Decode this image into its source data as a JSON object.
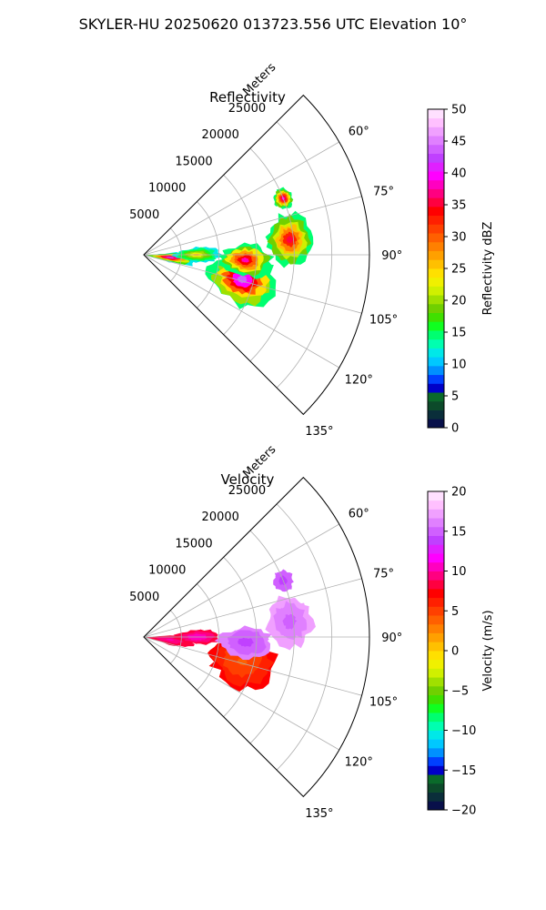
{
  "figure": {
    "title": "SKYLER-HU  20250620  013723.556 UTC Elevation 10°"
  },
  "chart_data": [
    {
      "type": "heatmap",
      "projection": "polar-sector",
      "title": "Reflectivity",
      "radial_label": "Meters",
      "theta_range_deg": [
        45,
        135
      ],
      "r_range": [
        0,
        30000
      ],
      "r_ticks": [
        "5000",
        "10000",
        "15000",
        "20000",
        "25000"
      ],
      "theta_ticks": [
        "60°",
        "75°",
        "90°",
        "105°",
        "120°",
        "135°"
      ],
      "grid": true,
      "colorbar": {
        "label": "Reflectivity dBZ",
        "range": [
          0,
          50
        ],
        "ticks": [
          "0",
          "5",
          "10",
          "15",
          "20",
          "25",
          "30",
          "35",
          "40",
          "45",
          "50"
        ],
        "colors": [
          "#08104a",
          "#0a2e3a",
          "#0c4a2a",
          "#0a6a2a",
          "#0000c8",
          "#0040ff",
          "#0090ff",
          "#00c8ff",
          "#00e8e8",
          "#00ffb0",
          "#00ff70",
          "#10ff20",
          "#40e000",
          "#70d000",
          "#a0e000",
          "#d0f000",
          "#f0f000",
          "#ffe000",
          "#ffc000",
          "#ffa000",
          "#ff8000",
          "#ff6000",
          "#ff4000",
          "#ff2000",
          "#ff0000",
          "#ff0040",
          "#ff0080",
          "#ff00c0",
          "#ff00ff",
          "#e020ff",
          "#c040ff",
          "#d060ff",
          "#e080ff",
          "#f0a0ff",
          "#ffc0ff",
          "#ffe0ff"
        ]
      },
      "echo_cells": [
        {
          "r": 3500,
          "theta": 96,
          "dr": 3500,
          "dtheta": 10,
          "core": 42,
          "edge": 12
        },
        {
          "r": 7000,
          "theta": 90,
          "dr": 3000,
          "dtheta": 8,
          "core": 25,
          "edge": 12
        },
        {
          "r": 13500,
          "theta": 104,
          "dr": 4500,
          "dtheta": 14,
          "core": 44,
          "edge": 15
        },
        {
          "r": 13500,
          "theta": 93,
          "dr": 3500,
          "dtheta": 9,
          "core": 38,
          "edge": 15
        },
        {
          "r": 19500,
          "theta": 84,
          "dr": 3000,
          "dtheta": 10,
          "core": 36,
          "edge": 15
        },
        {
          "r": 20000,
          "theta": 68,
          "dr": 1300,
          "dtheta": 4,
          "core": 40,
          "edge": 14
        }
      ]
    },
    {
      "type": "heatmap",
      "projection": "polar-sector",
      "title": "Velocity",
      "radial_label": "Meters",
      "theta_range_deg": [
        45,
        135
      ],
      "r_range": [
        0,
        30000
      ],
      "r_ticks": [
        "5000",
        "10000",
        "15000",
        "20000",
        "25000"
      ],
      "theta_ticks": [
        "60°",
        "75°",
        "90°",
        "105°",
        "120°",
        "135°"
      ],
      "grid": true,
      "colorbar": {
        "label": "Velocity (m/s)",
        "range": [
          -20,
          20
        ],
        "ticks": [
          "−20",
          "−15",
          "−10",
          "−5",
          "0",
          "5",
          "10",
          "15",
          "20"
        ],
        "colors": [
          "#08104a",
          "#0a2e3a",
          "#0c4a2a",
          "#0a6a2a",
          "#0000c8",
          "#0040ff",
          "#0090ff",
          "#00c8ff",
          "#00e8e8",
          "#00ffb0",
          "#00ff70",
          "#10ff20",
          "#40e000",
          "#70d000",
          "#a0e000",
          "#d0f000",
          "#f0f000",
          "#ffe000",
          "#ffc000",
          "#ffa000",
          "#ff8000",
          "#ff6000",
          "#ff4000",
          "#ff2000",
          "#ff0000",
          "#ff0040",
          "#ff0080",
          "#ff00c0",
          "#ff00ff",
          "#e020ff",
          "#c040ff",
          "#d060ff",
          "#e080ff",
          "#f0a0ff",
          "#ffc0ff",
          "#ffe0ff"
        ]
      },
      "echo_cells": [
        {
          "r": 3500,
          "theta": 96,
          "dr": 3500,
          "dtheta": 10,
          "core": 10,
          "edge": 8
        },
        {
          "r": 7000,
          "theta": 90,
          "dr": 3000,
          "dtheta": 8,
          "core": 11,
          "edge": 8
        },
        {
          "r": 13500,
          "theta": 104,
          "dr": 4500,
          "dtheta": 14,
          "core": 4,
          "edge": 7
        },
        {
          "r": 13500,
          "theta": 93,
          "dr": 3500,
          "dtheta": 9,
          "core": 14,
          "edge": 16
        },
        {
          "r": 19500,
          "theta": 84,
          "dr": 3000,
          "dtheta": 10,
          "core": 15,
          "edge": 17
        },
        {
          "r": 20000,
          "theta": 68,
          "dr": 1300,
          "dtheta": 4,
          "core": 14,
          "edge": 15
        }
      ]
    }
  ]
}
